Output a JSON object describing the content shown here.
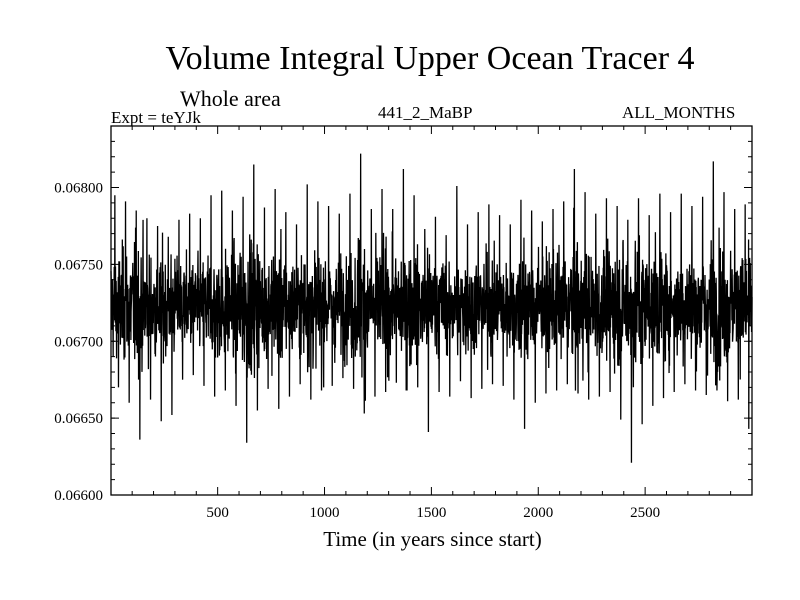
{
  "chart_data": {
    "type": "line",
    "title": "Volume Integral Upper Ocean Tracer 4",
    "subtitle": "Whole area",
    "annotations": {
      "experiment": "Expt = teYJk",
      "run": "441_2_MaBP",
      "months": "ALL_MONTHS"
    },
    "xlabel": "Time (in years since start)",
    "ylabel": "",
    "xlim": [
      1,
      3000
    ],
    "ylim": [
      0.066,
      0.0684
    ],
    "xticks": [
      500,
      1000,
      1500,
      2000,
      2500
    ],
    "xtick_labels": [
      "500",
      "1000",
      "1500",
      "2000",
      "2500"
    ],
    "yticks": [
      0.066,
      0.0665,
      0.067,
      0.0675,
      0.068
    ],
    "ytick_labels": [
      "0.06600",
      "0.06650",
      "0.06700",
      "0.06750",
      "0.06800"
    ],
    "grid": false,
    "series": [
      {
        "color": "#000000",
        "x": [
          1,
          51,
          101,
          151,
          201,
          251,
          301,
          351,
          401,
          451,
          501,
          551,
          601,
          651,
          701,
          751,
          801,
          851,
          901,
          951,
          1001,
          1051,
          1101,
          1151,
          1201,
          1251,
          1301,
          1351,
          1401,
          1451,
          1501,
          1551,
          1601,
          1651,
          1701,
          1751,
          1801,
          1851,
          1901,
          1951,
          2001,
          2051,
          2101,
          2151,
          2201,
          2251,
          2301,
          2351,
          2401,
          2451,
          2501,
          2551,
          2601,
          2651,
          2701,
          2751,
          2801,
          2851,
          2901,
          2951,
          3000
        ],
        "mean": 0.06723,
        "min": [
          0.0667,
          0.0666,
          0.06636,
          0.06662,
          0.06648,
          0.06652,
          0.06675,
          0.06678,
          0.06671,
          0.06664,
          0.06668,
          0.06658,
          0.06634,
          0.06655,
          0.06669,
          0.06656,
          0.06664,
          0.06672,
          0.06662,
          0.06668,
          0.06671,
          0.06676,
          0.06669,
          0.06653,
          0.06664,
          0.06667,
          0.06673,
          0.06668,
          0.0667,
          0.06641,
          0.06667,
          0.06664,
          0.06674,
          0.06663,
          0.06669,
          0.06672,
          0.06671,
          0.06662,
          0.06643,
          0.0666,
          0.06666,
          0.06668,
          0.06672,
          0.06666,
          0.06662,
          0.06664,
          0.06667,
          0.06649,
          0.06621,
          0.06646,
          0.06658,
          0.06663,
          0.06667,
          0.06672,
          0.06668,
          0.06665,
          0.06668,
          0.06661,
          0.06662,
          0.06643,
          0.06661
        ],
        "max": [
          0.06795,
          0.06791,
          0.06785,
          0.0678,
          0.06775,
          0.06768,
          0.06779,
          0.06783,
          0.0678,
          0.06795,
          0.06798,
          0.06785,
          0.06794,
          0.06815,
          0.06787,
          0.06799,
          0.06784,
          0.06776,
          0.06802,
          0.06791,
          0.06788,
          0.06783,
          0.06796,
          0.06822,
          0.06786,
          0.06799,
          0.06786,
          0.06812,
          0.06795,
          0.06773,
          0.06781,
          0.06769,
          0.06801,
          0.06776,
          0.06784,
          0.06789,
          0.06782,
          0.06776,
          0.06792,
          0.06785,
          0.06778,
          0.06786,
          0.06791,
          0.06812,
          0.06797,
          0.06783,
          0.06793,
          0.06788,
          0.06779,
          0.06793,
          0.06782,
          0.06796,
          0.06784,
          0.06796,
          0.06788,
          0.06794,
          0.06817,
          0.06797,
          0.06786,
          0.06789,
          0.06783
        ]
      }
    ]
  }
}
